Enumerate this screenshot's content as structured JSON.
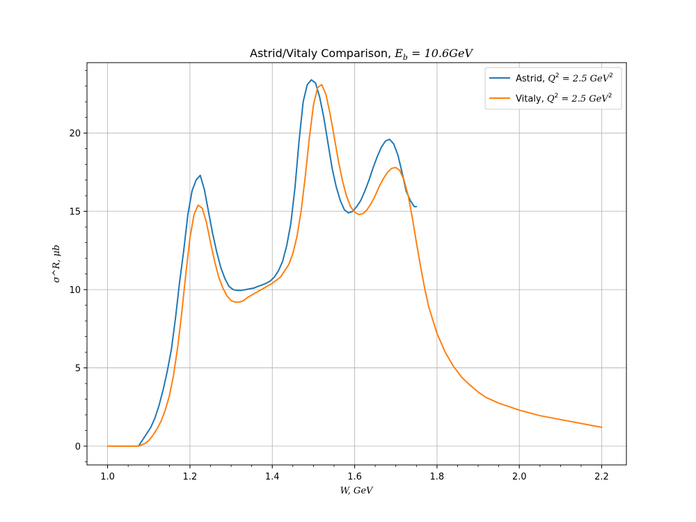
{
  "chart_data": {
    "type": "line",
    "title": "Astrid/Vitaly Comparison, E_b = 10.6GeV",
    "title_parts": {
      "prefix": "Astrid/Vitaly Comparison, ",
      "var": "E",
      "sub": "b",
      "suffix": " = 10.6GeV"
    },
    "xlabel": "W, GeV",
    "ylabel": "σ^R, μb",
    "xlim": [
      0.95,
      2.26
    ],
    "ylim": [
      -1.2,
      24.5
    ],
    "x_ticks": [
      "1.0",
      "1.2",
      "1.4",
      "1.6",
      "1.8",
      "2.0",
      "2.2"
    ],
    "x_tick_values": [
      1.0,
      1.2,
      1.4,
      1.6,
      1.8,
      2.0,
      2.2
    ],
    "y_ticks": [
      "0",
      "5",
      "10",
      "15",
      "20"
    ],
    "y_tick_values": [
      0,
      5,
      10,
      15,
      20
    ],
    "grid": true,
    "legend_position": "top-right",
    "series": [
      {
        "name": "Astrid, Q^2 = 2.5 GeV^2",
        "legend": {
          "prefix": "Astrid, ",
          "suffix": " = 2.5 GeV"
        },
        "color": "#1f77b4",
        "x": [
          1.075,
          1.085,
          1.095,
          1.105,
          1.115,
          1.125,
          1.135,
          1.145,
          1.155,
          1.165,
          1.175,
          1.185,
          1.195,
          1.205,
          1.215,
          1.225,
          1.235,
          1.245,
          1.255,
          1.265,
          1.275,
          1.285,
          1.295,
          1.305,
          1.315,
          1.325,
          1.335,
          1.345,
          1.355,
          1.365,
          1.375,
          1.385,
          1.395,
          1.405,
          1.415,
          1.425,
          1.435,
          1.445,
          1.455,
          1.465,
          1.475,
          1.485,
          1.495,
          1.505,
          1.515,
          1.525,
          1.535,
          1.545,
          1.555,
          1.565,
          1.575,
          1.585,
          1.595,
          1.605,
          1.615,
          1.625,
          1.635,
          1.645,
          1.655,
          1.665,
          1.675,
          1.685,
          1.695,
          1.705,
          1.715,
          1.725,
          1.735,
          1.745,
          1.75
        ],
        "y": [
          0.0,
          0.4,
          0.8,
          1.2,
          1.8,
          2.6,
          3.6,
          4.8,
          6.2,
          8.2,
          10.5,
          12.5,
          14.8,
          16.3,
          17.0,
          17.3,
          16.4,
          15.0,
          13.6,
          12.4,
          11.4,
          10.7,
          10.2,
          10.0,
          9.95,
          9.95,
          10.0,
          10.05,
          10.1,
          10.2,
          10.3,
          10.4,
          10.55,
          10.8,
          11.2,
          11.8,
          12.8,
          14.2,
          16.5,
          19.5,
          22.0,
          23.1,
          23.4,
          23.2,
          22.3,
          21.0,
          19.4,
          17.8,
          16.6,
          15.7,
          15.1,
          14.9,
          15.0,
          15.3,
          15.7,
          16.3,
          17.0,
          17.8,
          18.5,
          19.1,
          19.5,
          19.6,
          19.3,
          18.6,
          17.5,
          16.3,
          15.7,
          15.3,
          15.3
        ]
      },
      {
        "name": "Vitaly, Q^2 = 2.5 GeV^2",
        "legend": {
          "prefix": "Vitaly, ",
          "suffix": " = 2.5 GeV"
        },
        "color": "#ff7f0e",
        "x": [
          1.0,
          1.02,
          1.04,
          1.06,
          1.075,
          1.09,
          1.1,
          1.11,
          1.12,
          1.13,
          1.14,
          1.15,
          1.16,
          1.17,
          1.18,
          1.19,
          1.2,
          1.21,
          1.22,
          1.23,
          1.24,
          1.25,
          1.26,
          1.27,
          1.28,
          1.29,
          1.3,
          1.31,
          1.32,
          1.33,
          1.34,
          1.36,
          1.38,
          1.4,
          1.42,
          1.44,
          1.45,
          1.46,
          1.47,
          1.48,
          1.49,
          1.5,
          1.51,
          1.52,
          1.53,
          1.54,
          1.55,
          1.56,
          1.57,
          1.58,
          1.59,
          1.6,
          1.61,
          1.62,
          1.63,
          1.64,
          1.65,
          1.66,
          1.67,
          1.68,
          1.69,
          1.7,
          1.71,
          1.72,
          1.73,
          1.74,
          1.75,
          1.76,
          1.77,
          1.78,
          1.8,
          1.82,
          1.84,
          1.86,
          1.88,
          1.9,
          1.92,
          1.95,
          2.0,
          2.05,
          2.1,
          2.15,
          2.2
        ],
        "y": [
          0.0,
          0.0,
          0.0,
          0.0,
          0.0,
          0.15,
          0.35,
          0.7,
          1.1,
          1.6,
          2.3,
          3.2,
          4.5,
          6.3,
          8.5,
          11.0,
          13.3,
          14.8,
          15.4,
          15.2,
          14.3,
          13.0,
          11.8,
          10.8,
          10.1,
          9.6,
          9.3,
          9.2,
          9.2,
          9.3,
          9.5,
          9.8,
          10.1,
          10.4,
          10.8,
          11.6,
          12.3,
          13.4,
          15.0,
          17.2,
          19.7,
          21.8,
          22.9,
          23.1,
          22.5,
          21.3,
          19.8,
          18.3,
          17.0,
          16.0,
          15.3,
          14.95,
          14.8,
          14.85,
          15.1,
          15.5,
          16.0,
          16.6,
          17.1,
          17.5,
          17.75,
          17.8,
          17.6,
          17.0,
          16.0,
          14.6,
          13.0,
          11.5,
          10.1,
          8.9,
          7.2,
          6.0,
          5.1,
          4.4,
          3.9,
          3.45,
          3.1,
          2.75,
          2.3,
          1.95,
          1.7,
          1.45,
          1.2
        ]
      }
    ]
  }
}
